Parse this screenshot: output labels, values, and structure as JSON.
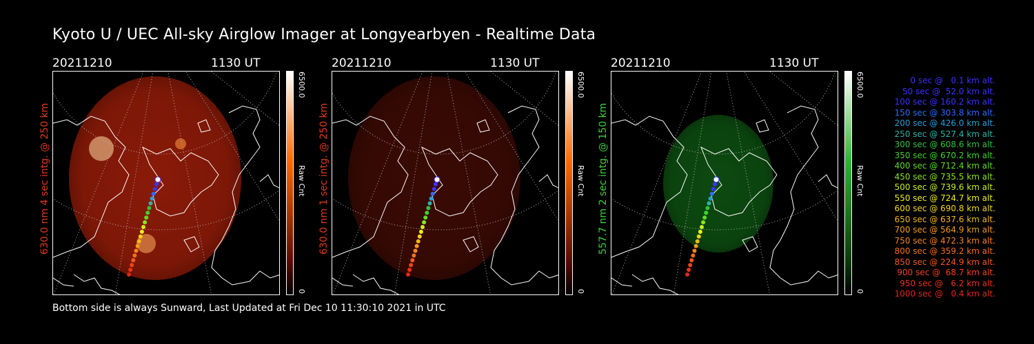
{
  "title": "Kyoto U / UEC All-sky Airglow Imager at Longyearbyen - Realtime Data",
  "footer": "Bottom side is always Sunward, Last Updated at Fri Dec 10 11:30:10 2021 in UTC",
  "panels": [
    {
      "date": "20211210",
      "time": "1130 UT",
      "ylabel": "630.0 nm 4 sec intg. @ 250 km",
      "ylabel_color": "#e03a1e",
      "cbar_max": "6500.0",
      "cbar_min": "0",
      "cbar_unit": "Raw Cnt",
      "glow_color": "#8a1a08",
      "bar_top": "#ff6a00"
    },
    {
      "date": "20211210",
      "time": "1130 UT",
      "ylabel": "630.0 nm 1 sec intg. @ 250 km",
      "ylabel_color": "#e03a1e",
      "cbar_max": "6500.0",
      "cbar_min": "0",
      "cbar_unit": "Raw Cnt",
      "glow_color": "#3a0a04",
      "bar_top": "#ff6a00"
    },
    {
      "date": "20211210",
      "time": "1130 UT",
      "ylabel": "557.7 nm 2 sec intg. @ 150 km",
      "ylabel_color": "#3fd23f",
      "cbar_max": "6500.0",
      "cbar_min": "0",
      "cbar_unit": "Raw Cnt",
      "glow_color": "#0c4a10",
      "bar_top": "#2fb52f"
    }
  ],
  "legend": [
    {
      "text": "0 sec @   0.1 km alt.",
      "color": "#3b33ff"
    },
    {
      "text": "50 sec @  52.0 km alt.",
      "color": "#3b33ff"
    },
    {
      "text": "100 sec @ 160.2 km alt.",
      "color": "#3b33ff"
    },
    {
      "text": "150 sec @ 303.8 km alt.",
      "color": "#2a6cff"
    },
    {
      "text": "200 sec @ 426.0 km alt.",
      "color": "#2a9fd8"
    },
    {
      "text": "250 sec @ 527.4 km alt.",
      "color": "#2ab5a8"
    },
    {
      "text": "300 sec @ 608.6 km alt.",
      "color": "#2fc43a"
    },
    {
      "text": "350 sec @ 670.2 km alt.",
      "color": "#3fd22a"
    },
    {
      "text": "400 sec @ 712.4 km alt.",
      "color": "#5fdc1f"
    },
    {
      "text": "450 sec @ 735.5 km alt.",
      "color": "#8be61a"
    },
    {
      "text": "500 sec @ 739.6 km alt.",
      "color": "#c8f01a"
    },
    {
      "text": "550 sec @ 724.7 km alt.",
      "color": "#f0f01a"
    },
    {
      "text": "600 sec @ 690.8 km alt.",
      "color": "#f5d51a"
    },
    {
      "text": "650 sec @ 637.6 km alt.",
      "color": "#f5b81a"
    },
    {
      "text": "700 sec @ 564.9 km alt.",
      "color": "#f59c1a"
    },
    {
      "text": "750 sec @ 472.3 km alt.",
      "color": "#f5851a"
    },
    {
      "text": "800 sec @ 359.2 km alt.",
      "color": "#f5701a"
    },
    {
      "text": "850 sec @ 224.9 km alt.",
      "color": "#f55a1a"
    },
    {
      "text": "900 sec @  68.7 km alt.",
      "color": "#f0441a"
    },
    {
      "text": "950 sec @   6.2 km alt.",
      "color": "#e8341a"
    },
    {
      "text": "1000 sec @   0.4 km alt.",
      "color": "#e0281a"
    }
  ]
}
